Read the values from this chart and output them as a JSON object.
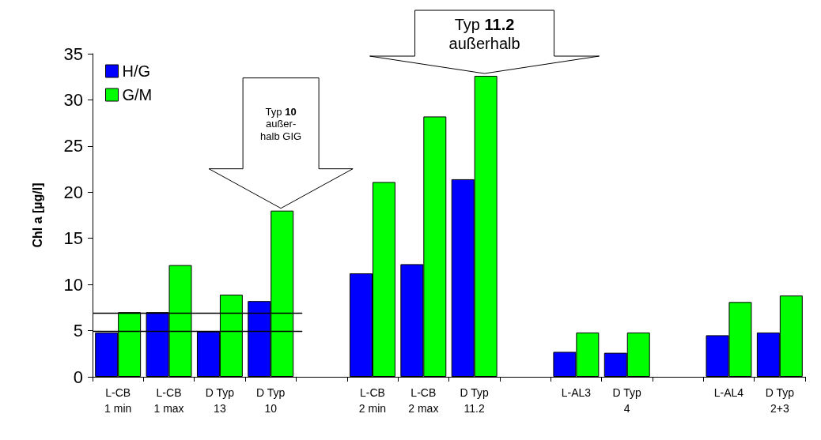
{
  "chart_data": {
    "type": "bar",
    "categories": [
      "L-CB\n1 min",
      "L-CB\n1 max",
      "D Typ\n13",
      "D Typ\n10",
      null,
      "L-CB\n2 min",
      "L-CB\n2 max",
      "D Typ\n11.2",
      null,
      "L-AL3",
      "D Typ\n4",
      null,
      "L-AL4",
      "D Typ\n2+3"
    ],
    "series": [
      {
        "name": "H/G",
        "color": "#0000ff",
        "values": [
          4.8,
          7.0,
          4.9,
          8.2,
          null,
          11.2,
          12.2,
          21.4,
          null,
          2.7,
          2.6,
          null,
          4.5,
          4.8
        ]
      },
      {
        "name": "G/M",
        "color": "#00ff00",
        "values": [
          7.0,
          12.1,
          8.9,
          18,
          null,
          21.1,
          28.2,
          32.6,
          null,
          4.8,
          4.8,
          null,
          8.1,
          8.8
        ]
      }
    ],
    "ylabel": "Chl a [µg/l]",
    "ylim": [
      0,
      35
    ],
    "yticks": [
      0,
      5,
      10,
      15,
      20,
      25,
      30,
      35
    ],
    "ref_lines": [
      {
        "axis": "y",
        "value": 4.9,
        "color": "#000000"
      },
      {
        "axis": "y",
        "value": 6.9,
        "color": "#000000"
      }
    ],
    "annotations": [
      "Typ 10\naußer-\nhalb GIG",
      "Typ 11.2\naußerhalb"
    ],
    "legend": "top left",
    "grid": false
  }
}
